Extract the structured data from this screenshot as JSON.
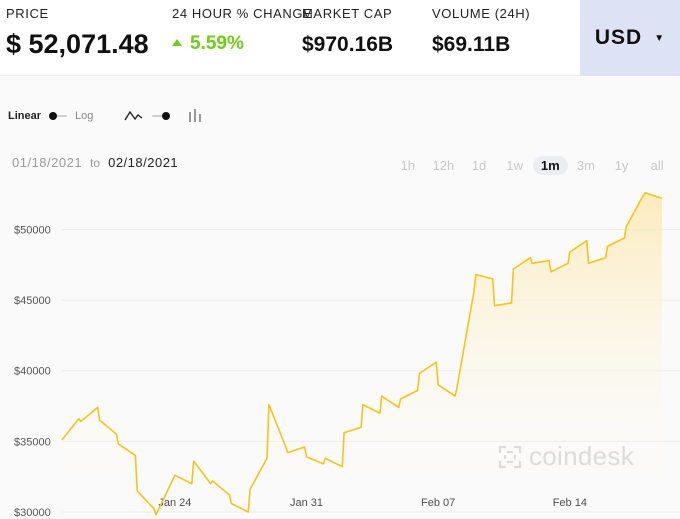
{
  "stats": {
    "price_label": "PRICE",
    "price_value": "$ 52,071.48",
    "change_label": "24 HOUR % CHANGE",
    "change_value": "5.59%",
    "mcap_label": "MARKET CAP",
    "mcap_value": "$970.16B",
    "volume_label": "VOLUME (24H)",
    "volume_value": "$69.11B"
  },
  "currency": {
    "label": "USD"
  },
  "scale": {
    "linear": "Linear",
    "log": "Log"
  },
  "date_range": {
    "from": "01/18/2021",
    "to_label": "to",
    "to": "02/18/2021"
  },
  "ranges": [
    "1h",
    "12h",
    "1d",
    "1w",
    "1m",
    "3m",
    "1y",
    "all"
  ],
  "active_range": "1m",
  "watermark": "coindesk",
  "colors": {
    "line": "#f5c515",
    "fill_top": "#fbe9b5",
    "change_up": "#6bcf13",
    "currency_bg": "#dde3f4"
  },
  "icons": {
    "line_chart": "line-chart-icon",
    "bar_chart": "bar-chart-icon",
    "caret": "caret-down-icon",
    "logo": "coindesk-logo-icon"
  },
  "chart_data": {
    "type": "area",
    "title": "",
    "xlabel": "",
    "ylabel": "",
    "x_start": "2021-01-18",
    "x_end": "2021-02-18",
    "x_ticks": [
      {
        "date": "2021-01-24",
        "label": "Jan 24"
      },
      {
        "date": "2021-01-31",
        "label": "Jan 31"
      },
      {
        "date": "2021-02-07",
        "label": "Feb 07"
      },
      {
        "date": "2021-02-14",
        "label": "Feb 14"
      }
    ],
    "y_ticks": [
      {
        "value": 30000,
        "label": "$30000"
      },
      {
        "value": 35000,
        "label": "$35000"
      },
      {
        "value": 40000,
        "label": "$40000"
      },
      {
        "value": 45000,
        "label": "$45000"
      },
      {
        "value": 50000,
        "label": "$50000"
      }
    ],
    "ylim": [
      29500,
      53500
    ],
    "series": [
      {
        "points": [
          [
            "2021-01-18",
            35100
          ],
          [
            "2021-01-18",
            36600
          ],
          [
            "2021-01-19",
            36400
          ],
          [
            "2021-01-19",
            37400
          ],
          [
            "2021-01-20",
            36500
          ],
          [
            "2021-01-20",
            35500
          ],
          [
            "2021-01-21",
            34800
          ],
          [
            "2021-01-21",
            34000
          ],
          [
            "2021-01-22",
            31500
          ],
          [
            "2021-01-22",
            30200
          ],
          [
            "2021-01-23",
            29800
          ],
          [
            "2021-01-23",
            32300
          ],
          [
            "2021-01-24",
            32600
          ],
          [
            "2021-01-24",
            32000
          ],
          [
            "2021-01-25",
            33600
          ],
          [
            "2021-01-25",
            32000
          ],
          [
            "2021-01-26",
            32200
          ],
          [
            "2021-01-26",
            31200
          ],
          [
            "2021-01-27",
            30600
          ],
          [
            "2021-01-27",
            30000
          ],
          [
            "2021-01-28",
            31600
          ],
          [
            "2021-01-28",
            33800
          ],
          [
            "2021-01-29",
            37600
          ],
          [
            "2021-01-29",
            34600
          ],
          [
            "2021-01-30",
            34200
          ],
          [
            "2021-01-30",
            34600
          ],
          [
            "2021-01-31",
            33900
          ],
          [
            "2021-01-31",
            33400
          ],
          [
            "2021-02-01",
            33800
          ],
          [
            "2021-02-01",
            33200
          ],
          [
            "2021-02-02",
            35600
          ],
          [
            "2021-02-02",
            36000
          ],
          [
            "2021-02-03",
            37600
          ],
          [
            "2021-02-03",
            37000
          ],
          [
            "2021-02-04",
            38200
          ],
          [
            "2021-02-04",
            37400
          ],
          [
            "2021-02-05",
            38000
          ],
          [
            "2021-02-05",
            38600
          ],
          [
            "2021-02-06",
            39800
          ],
          [
            "2021-02-06",
            40600
          ],
          [
            "2021-02-07",
            39000
          ],
          [
            "2021-02-07",
            38200
          ],
          [
            "2021-02-08",
            38800
          ],
          [
            "2021-02-08",
            45600
          ],
          [
            "2021-02-09",
            46800
          ],
          [
            "2021-02-09",
            46500
          ],
          [
            "2021-02-10",
            44600
          ],
          [
            "2021-02-10",
            44800
          ],
          [
            "2021-02-11",
            47200
          ],
          [
            "2021-02-11",
            48000
          ],
          [
            "2021-02-12",
            47600
          ],
          [
            "2021-02-12",
            47800
          ],
          [
            "2021-02-13",
            47000
          ],
          [
            "2021-02-13",
            47600
          ],
          [
            "2021-02-14",
            48400
          ],
          [
            "2021-02-14",
            49200
          ],
          [
            "2021-02-15",
            47600
          ],
          [
            "2021-02-15",
            48000
          ],
          [
            "2021-02-16",
            48800
          ],
          [
            "2021-02-16",
            49400
          ],
          [
            "2021-02-17",
            50200
          ],
          [
            "2021-02-17",
            52400
          ],
          [
            "2021-02-18",
            52600
          ],
          [
            "2021-02-18",
            52200
          ]
        ]
      }
    ]
  }
}
